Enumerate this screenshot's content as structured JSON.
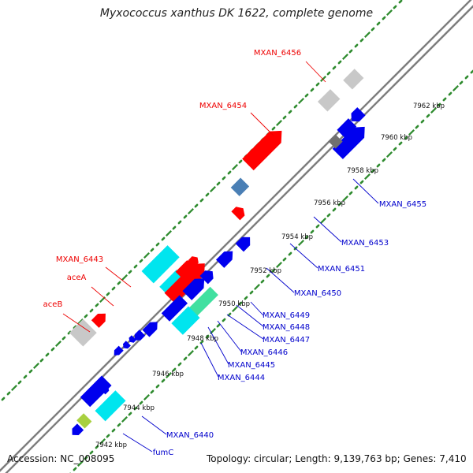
{
  "title": "Myxococcus xanthus DK 1622, complete genome",
  "footer": {
    "accession": "Accession: NC_008095",
    "summary": "Topology: circular; Length: 9,139,763 bp; Genes: 7,410"
  },
  "colors": {
    "background": "#ffffff",
    "backbone": "#8a8a8a",
    "scale_ticks": "#2e8b2e",
    "red_gene": "#ff0000",
    "blue_gene": "#0000ee",
    "cyan_gene": "#00e5ee",
    "teal_gene": "#40e0a0",
    "steel_gene": "#4a7fb5",
    "grey_gene": "#707070",
    "lightgrey_gene": "#c8c8c8",
    "yellowgreen_gene": "#a8d040",
    "label_red": "#ee0000",
    "label_blue": "#0000cc"
  },
  "scale_labels": [
    "7942 kbp",
    "7944 kbp",
    "7946 kbp",
    "7948 kbp",
    "7950 kbp",
    "7952 kbp",
    "7954 kbp",
    "7956 kbp",
    "7958 kbp",
    "7960 kbp",
    "7962 kbp"
  ],
  "gene_labels": {
    "left": [
      "MXAN_6456",
      "MXAN_6454",
      "MXAN_6443",
      "aceA",
      "aceB"
    ],
    "right": [
      "MXAN_6455",
      "MXAN_6453",
      "MXAN_6451",
      "MXAN_6450",
      "MXAN_6449",
      "MXAN_6448",
      "MXAN_6447",
      "MXAN_6446",
      "MXAN_6445",
      "MXAN_6444",
      "MXAN_6440",
      "fumC"
    ]
  }
}
